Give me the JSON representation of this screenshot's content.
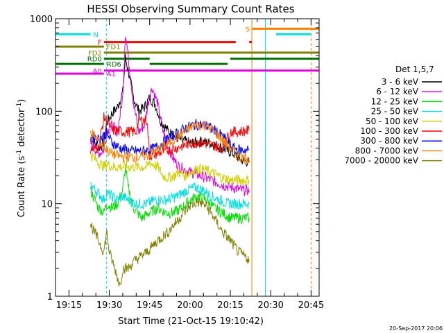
{
  "chart_data": {
    "type": "line",
    "title": "HESSI Observing Summary Count Rates",
    "xlabel": "Start Time (21-Oct-15 19:10:42)",
    "ylabel_main": "Count Rate (s",
    "ylabel_sup1": "-1",
    "ylabel_mid": " detector",
    "ylabel_sup2": "-1",
    "ylabel_end": ")",
    "y_scale": "log",
    "xlim": [
      "19:10",
      "20:48"
    ],
    "ylim": [
      1,
      1000
    ],
    "x_ticks": [
      "19:15",
      "19:30",
      "19:45",
      "20:00",
      "20:15",
      "20:30",
      "20:45"
    ],
    "y_ticks": [
      "1",
      "10",
      "100",
      "1000"
    ],
    "legend_title": "Det 1,5,7",
    "legend_position": "right",
    "timestamp": "20-Sep-2017 20:06",
    "series": [
      {
        "name": "3 - 6 keV",
        "color": "#000000",
        "points": [
          [
            "19:23",
            52
          ],
          [
            "19:26",
            40
          ],
          [
            "19:28",
            45
          ],
          [
            "19:29",
            75
          ],
          [
            "19:31",
            95
          ],
          [
            "19:33",
            110
          ],
          [
            "19:35",
            160
          ],
          [
            "19:36",
            380
          ],
          [
            "19:37",
            280
          ],
          [
            "19:39",
            140
          ],
          [
            "19:41",
            100
          ],
          [
            "19:43",
            110
          ],
          [
            "19:45",
            140
          ],
          [
            "19:47",
            120
          ],
          [
            "19:49",
            80
          ],
          [
            "19:52",
            60
          ],
          [
            "19:56",
            50
          ],
          [
            "20:00",
            45
          ],
          [
            "20:04",
            47
          ],
          [
            "20:08",
            45
          ],
          [
            "20:12",
            40
          ],
          [
            "20:16",
            35
          ],
          [
            "20:19",
            30
          ],
          [
            "20:22",
            28
          ]
        ]
      },
      {
        "name": "6 - 12 keV",
        "color": "#e000e0",
        "points": [
          [
            "19:23",
            45
          ],
          [
            "19:26",
            35
          ],
          [
            "19:28",
            38
          ],
          [
            "19:29",
            60
          ],
          [
            "19:31",
            70
          ],
          [
            "19:33",
            60
          ],
          [
            "19:35",
            140
          ],
          [
            "19:36",
            720
          ],
          [
            "19:37",
            400
          ],
          [
            "19:39",
            120
          ],
          [
            "19:41",
            60
          ],
          [
            "19:43",
            70
          ],
          [
            "19:45",
            150
          ],
          [
            "19:46",
            180
          ],
          [
            "19:48",
            120
          ],
          [
            "19:50",
            60
          ],
          [
            "19:52",
            40
          ],
          [
            "19:54",
            30
          ],
          [
            "19:56",
            25
          ],
          [
            "20:00",
            22
          ],
          [
            "20:04",
            20
          ],
          [
            "20:08",
            18
          ],
          [
            "20:12",
            16
          ],
          [
            "20:16",
            15
          ],
          [
            "20:19",
            14
          ],
          [
            "20:22",
            14
          ]
        ]
      },
      {
        "name": "12 - 25 keV",
        "color": "#00e000",
        "points": [
          [
            "19:23",
            14
          ],
          [
            "19:26",
            9
          ],
          [
            "19:28",
            8
          ],
          [
            "19:29",
            10
          ],
          [
            "19:31",
            9
          ],
          [
            "19:33",
            10
          ],
          [
            "19:35",
            14
          ],
          [
            "19:36",
            25
          ],
          [
            "19:37",
            15
          ],
          [
            "19:39",
            9
          ],
          [
            "19:42",
            7
          ],
          [
            "19:45",
            8
          ],
          [
            "19:48",
            9
          ],
          [
            "19:51",
            8
          ],
          [
            "19:54",
            8
          ],
          [
            "19:57",
            9
          ],
          [
            "20:00",
            11
          ],
          [
            "20:03",
            12
          ],
          [
            "20:06",
            11
          ],
          [
            "20:09",
            9
          ],
          [
            "20:12",
            8
          ],
          [
            "20:15",
            7
          ],
          [
            "20:18",
            7
          ],
          [
            "20:22",
            7
          ]
        ]
      },
      {
        "name": "25 - 50 keV",
        "color": "#00e0e0",
        "points": [
          [
            "19:23",
            16
          ],
          [
            "19:26",
            13
          ],
          [
            "19:28",
            11
          ],
          [
            "19:29",
            13
          ],
          [
            "19:31",
            12
          ],
          [
            "19:33",
            11
          ],
          [
            "19:35",
            12
          ],
          [
            "19:37",
            11
          ],
          [
            "19:40",
            10
          ],
          [
            "19:44",
            10
          ],
          [
            "19:47",
            11
          ],
          [
            "19:51",
            11
          ],
          [
            "19:55",
            12
          ],
          [
            "19:59",
            14
          ],
          [
            "20:02",
            15
          ],
          [
            "20:05",
            14
          ],
          [
            "20:08",
            12
          ],
          [
            "20:11",
            11
          ],
          [
            "20:14",
            10
          ],
          [
            "20:17",
            10
          ],
          [
            "20:20",
            10
          ],
          [
            "20:22",
            10
          ]
        ]
      },
      {
        "name": "50 - 100 keV",
        "color": "#d0d000",
        "points": [
          [
            "19:23",
            34
          ],
          [
            "19:26",
            28
          ],
          [
            "19:28",
            25
          ],
          [
            "19:29",
            27
          ],
          [
            "19:31",
            25
          ],
          [
            "19:33",
            25
          ],
          [
            "19:36",
            25
          ],
          [
            "19:40",
            25
          ],
          [
            "19:44",
            25
          ],
          [
            "19:45",
            28
          ],
          [
            "19:48",
            25
          ],
          [
            "19:50",
            20
          ],
          [
            "19:52",
            19
          ],
          [
            "19:54",
            20
          ],
          [
            "19:56",
            22
          ],
          [
            "19:58",
            20
          ],
          [
            "20:00",
            22
          ],
          [
            "20:03",
            24
          ],
          [
            "20:06",
            23
          ],
          [
            "20:09",
            21
          ],
          [
            "20:12",
            19
          ],
          [
            "20:15",
            18
          ],
          [
            "20:18",
            18
          ],
          [
            "20:22",
            18
          ]
        ]
      },
      {
        "name": "100 - 300 keV",
        "color": "#ff0000",
        "points": [
          [
            "19:23",
            38
          ],
          [
            "19:26",
            40
          ],
          [
            "19:28",
            85
          ],
          [
            "19:29",
            80
          ],
          [
            "19:30",
            70
          ],
          [
            "19:31",
            62
          ],
          [
            "19:35",
            60
          ],
          [
            "19:39",
            60
          ],
          [
            "19:40",
            60
          ],
          [
            "19:41",
            80
          ],
          [
            "19:44",
            80
          ],
          [
            "19:45",
            33
          ],
          [
            "19:48",
            35
          ],
          [
            "19:52",
            38
          ],
          [
            "19:56",
            41
          ],
          [
            "20:00",
            45
          ],
          [
            "20:04",
            46
          ],
          [
            "20:08",
            43
          ],
          [
            "20:12",
            40
          ],
          [
            "20:15",
            60
          ],
          [
            "20:18",
            60
          ],
          [
            "20:22",
            62
          ]
        ]
      },
      {
        "name": "300 - 800 keV",
        "color": "#0000ff",
        "points": [
          [
            "19:23",
            55
          ],
          [
            "19:26",
            50
          ],
          [
            "19:28",
            55
          ],
          [
            "19:29",
            58
          ],
          [
            "19:31",
            46
          ],
          [
            "19:34",
            40
          ],
          [
            "19:38",
            37
          ],
          [
            "19:42",
            37
          ],
          [
            "19:45",
            38
          ],
          [
            "19:47",
            40
          ],
          [
            "19:50",
            46
          ],
          [
            "19:54",
            55
          ],
          [
            "19:58",
            65
          ],
          [
            "20:02",
            72
          ],
          [
            "20:06",
            70
          ],
          [
            "20:10",
            60
          ],
          [
            "20:13",
            50
          ],
          [
            "20:16",
            40
          ],
          [
            "20:19",
            38
          ],
          [
            "20:22",
            38
          ]
        ]
      },
      {
        "name": "800 - 7000 keV",
        "color": "#ff8000",
        "points": [
          [
            "19:23",
            60
          ],
          [
            "19:26",
            48
          ],
          [
            "19:28",
            42
          ],
          [
            "19:30",
            36
          ],
          [
            "19:33",
            33
          ],
          [
            "19:37",
            32
          ],
          [
            "19:41",
            32
          ],
          [
            "19:45",
            34
          ],
          [
            "19:48",
            38
          ],
          [
            "19:52",
            45
          ],
          [
            "19:56",
            55
          ],
          [
            "20:00",
            66
          ],
          [
            "20:03",
            72
          ],
          [
            "20:06",
            70
          ],
          [
            "20:09",
            60
          ],
          [
            "20:12",
            50
          ],
          [
            "20:15",
            40
          ],
          [
            "20:18",
            32
          ],
          [
            "20:22",
            31
          ]
        ]
      },
      {
        "name": "7000 - 20000 keV",
        "color": "#808000",
        "points": [
          [
            "19:23",
            6
          ],
          [
            "19:26",
            4
          ],
          [
            "19:28",
            3
          ],
          [
            "19:29",
            5
          ],
          [
            "19:30",
            3
          ],
          [
            "19:32",
            2
          ],
          [
            "19:34",
            1.3
          ],
          [
            "19:35",
            2
          ],
          [
            "19:37",
            2
          ],
          [
            "19:40",
            2.5
          ],
          [
            "19:44",
            3
          ],
          [
            "19:48",
            4
          ],
          [
            "19:52",
            5
          ],
          [
            "19:56",
            7
          ],
          [
            "20:00",
            9.5
          ],
          [
            "20:03",
            10.5
          ],
          [
            "20:06",
            9.5
          ],
          [
            "20:09",
            7
          ],
          [
            "20:12",
            5
          ],
          [
            "20:15",
            4
          ],
          [
            "20:18",
            3
          ],
          [
            "20:22",
            2.5
          ]
        ]
      }
    ],
    "attenuator_bars": [
      {
        "label": "N",
        "color": "#00e0e0",
        "label_side": "right",
        "segments": [
          [
            "19:10",
            "19:23"
          ],
          [
            "20:32",
            "20:45"
          ]
        ],
        "level": 680
      },
      {
        "label": "F",
        "color": "#ff0000",
        "label_side": "left",
        "segments": [
          [
            "19:28",
            "20:17"
          ],
          [
            "20:22",
            "20:23"
          ]
        ],
        "level": 560
      },
      {
        "label": "FD1",
        "color": "#808000",
        "label_side": "right",
        "segments": [
          [
            "19:10",
            "19:28"
          ]
        ],
        "level": 500
      },
      {
        "label": "FD2",
        "color": "#808000",
        "label_side": "left",
        "segments": [
          [
            "19:28",
            "20:48"
          ]
        ],
        "level": 430
      },
      {
        "label": "RD0",
        "color": "#007000",
        "label_side": "left",
        "segments": [
          [
            "19:28",
            "19:45"
          ],
          [
            "20:15",
            "20:48"
          ]
        ],
        "level": 370
      },
      {
        "label": "RD6",
        "color": "#007000",
        "label_side": "right",
        "segments": [
          [
            "19:10",
            "19:28"
          ],
          [
            "19:45",
            "20:14"
          ]
        ],
        "level": 325
      },
      {
        "label": "A0",
        "color": "#e000e0",
        "label_side": "left",
        "segments": [
          [
            "19:28",
            "20:48"
          ]
        ],
        "level": 275
      },
      {
        "label": "A1",
        "color": "#e000e0",
        "label_side": "right",
        "segments": [
          [
            "19:10",
            "19:28"
          ]
        ],
        "level": 255
      },
      {
        "label": "S",
        "color": "#ff8000",
        "label_side": "left",
        "segments": [
          [
            "20:23",
            "20:48"
          ]
        ],
        "level": 780
      }
    ],
    "vertical_markers": [
      {
        "time": "19:10",
        "color": "#00e0e0",
        "style": "solid"
      },
      {
        "time": "19:29",
        "color": "#00e0e0",
        "style": "dashed"
      },
      {
        "time": "20:23",
        "color": "#d09000",
        "style": "solid"
      },
      {
        "time": "20:28",
        "color": "#00e0e0",
        "style": "solid"
      },
      {
        "time": "20:45",
        "color": "#ff8000",
        "style": "dashed"
      }
    ]
  }
}
